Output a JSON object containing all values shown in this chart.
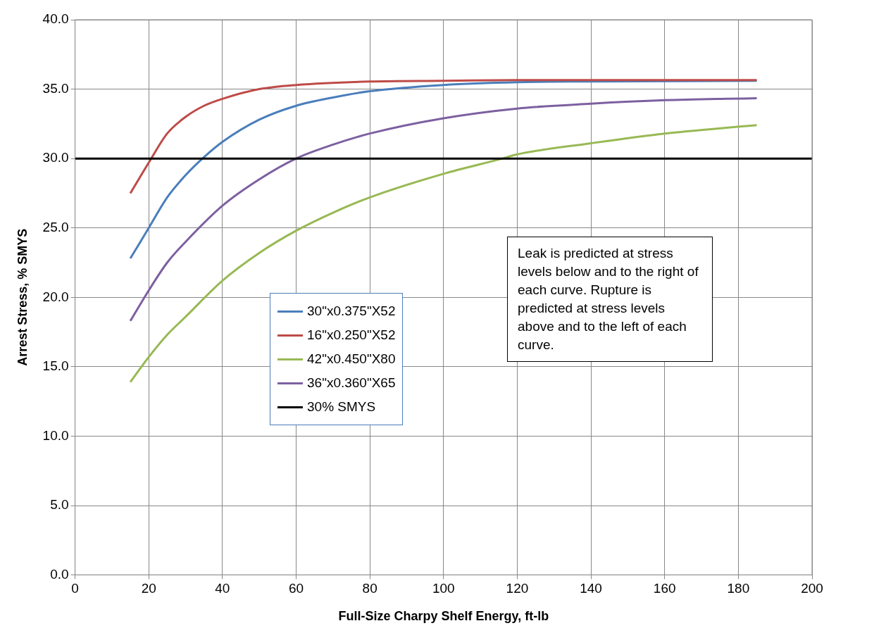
{
  "chart_data": {
    "type": "line",
    "xlabel": "Full-Size Charpy Shelf Energy, ft-lb",
    "ylabel": "Arrest Stress, % SMYS",
    "xlim": [
      0,
      200
    ],
    "xticks": [
      0,
      20,
      40,
      60,
      80,
      100,
      120,
      140,
      160,
      180,
      200
    ],
    "ylim": [
      0,
      40
    ],
    "yticks": [
      {
        "value": 0,
        "label": "0.0"
      },
      {
        "value": 5,
        "label": "5.0"
      },
      {
        "value": 10,
        "label": "10.0"
      },
      {
        "value": 15,
        "label": "15.0"
      },
      {
        "value": 20,
        "label": "20.0"
      },
      {
        "value": 25,
        "label": "25.0"
      },
      {
        "value": 30,
        "label": "30.0"
      },
      {
        "value": 35,
        "label": "35.0"
      },
      {
        "value": 40,
        "label": "40.0"
      }
    ],
    "grid": true,
    "legend": "center left",
    "marker": "none",
    "line_style": "solid",
    "series": [
      {
        "name": "30\"x0.375\"X52",
        "color": "#4a7ebb",
        "x": [
          15,
          20,
          25,
          30,
          35,
          40,
          50,
          60,
          70,
          80,
          100,
          120,
          140,
          185
        ],
        "values": [
          22.8,
          25.0,
          27.2,
          28.8,
          30.1,
          31.2,
          32.8,
          33.8,
          34.4,
          34.85,
          35.3,
          35.5,
          35.55,
          35.6
        ]
      },
      {
        "name": "16\"x0.250\"X52",
        "color": "#be4b48",
        "x": [
          15,
          20,
          25,
          30,
          35,
          40,
          50,
          60,
          80,
          100,
          120,
          150,
          185
        ],
        "values": [
          27.5,
          29.7,
          31.8,
          33.0,
          33.8,
          34.3,
          35.0,
          35.3,
          35.55,
          35.6,
          35.65,
          35.65,
          35.65
        ]
      },
      {
        "name": "42\"x0.450\"X80",
        "color": "#98b954",
        "x": [
          15,
          20,
          25,
          30,
          40,
          50,
          60,
          70,
          80,
          100,
          116,
          120,
          140,
          160,
          185
        ],
        "values": [
          13.9,
          15.7,
          17.3,
          18.6,
          21.2,
          23.2,
          24.8,
          26.1,
          27.2,
          28.9,
          30.0,
          30.3,
          31.1,
          31.8,
          32.4
        ]
      },
      {
        "name": "36\"x0.360\"X65",
        "color": "#7d60a0",
        "x": [
          15,
          20,
          25,
          30,
          40,
          50,
          60,
          70,
          80,
          100,
          120,
          140,
          160,
          185
        ],
        "values": [
          18.3,
          20.5,
          22.5,
          24.0,
          26.6,
          28.5,
          30.0,
          31.0,
          31.8,
          32.9,
          33.6,
          33.95,
          34.2,
          34.35
        ]
      },
      {
        "name": "30% SMYS",
        "color": "#000000",
        "x": [
          0,
          200
        ],
        "values": [
          30,
          30
        ]
      }
    ],
    "annotations": [
      "Leak is predicted at stress levels below and to the right of each curve. Rupture is predicted at stress levels above and to the left of each curve."
    ]
  }
}
